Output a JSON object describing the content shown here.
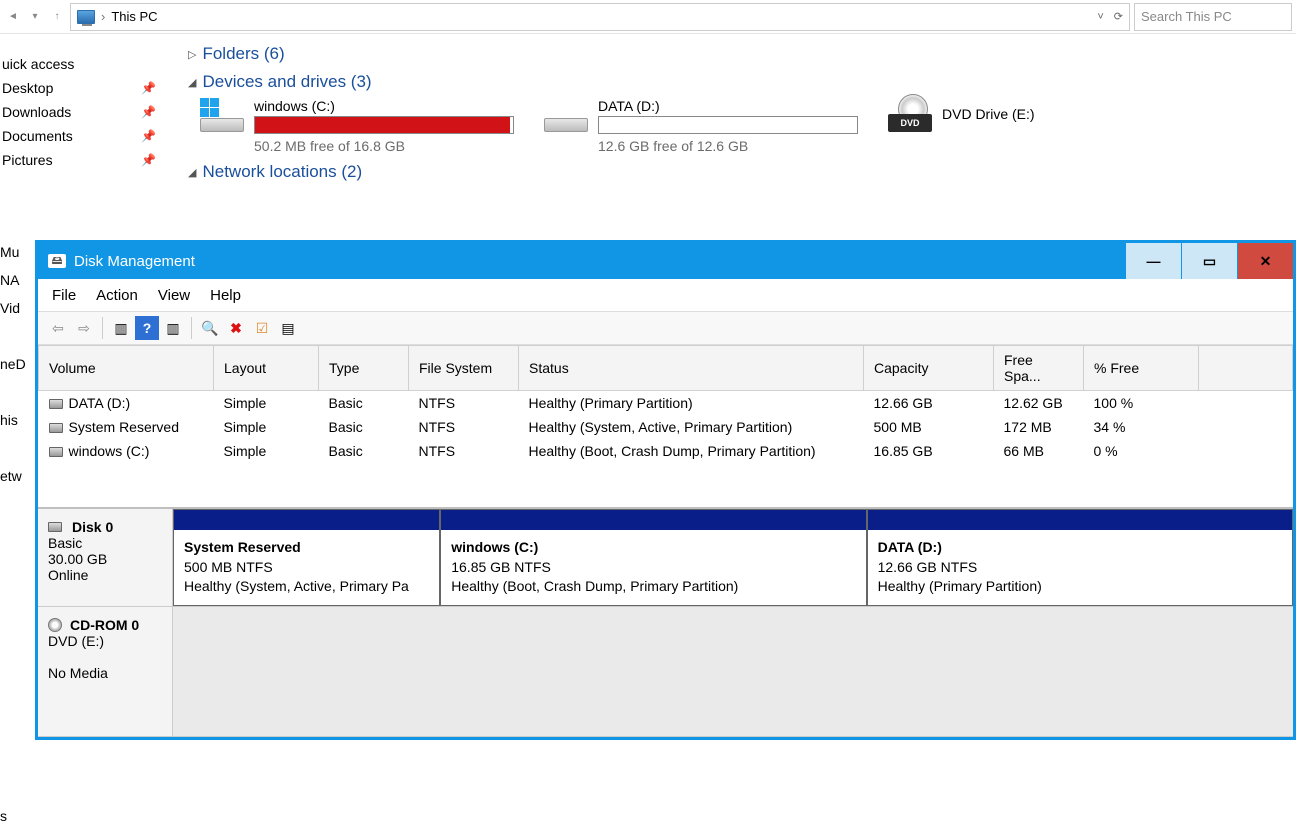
{
  "addressbar": {
    "path": "This PC",
    "refresh_glyph": "⟳",
    "chev_glyph": "˅"
  },
  "search": {
    "placeholder": "Search This PC"
  },
  "sidebar": {
    "quick": "uick access",
    "items": [
      {
        "label": "Desktop"
      },
      {
        "label": "Downloads"
      },
      {
        "label": "Documents"
      },
      {
        "label": "Pictures"
      }
    ]
  },
  "sections": {
    "folders": {
      "label": "Folders (6)"
    },
    "devices": {
      "label": "Devices and drives (3)"
    },
    "network": {
      "label": "Network locations (2)"
    }
  },
  "drives": {
    "c": {
      "title": "windows (C:)",
      "free": "50.2 MB free of 16.8 GB",
      "fill_pct": 99,
      "fill_color": "#d11217"
    },
    "d": {
      "title": "DATA (D:)",
      "free": "12.6 GB free of 12.6 GB",
      "fill_pct": 0,
      "fill_color": "#2d89ef"
    },
    "e": {
      "title": "DVD Drive (E:)"
    }
  },
  "left_cut": [
    "Mu",
    "NA",
    "Vid",
    "",
    "neD",
    "",
    "his",
    "",
    "etw",
    "",
    "",
    "",
    "",
    "",
    "",
    "",
    "",
    "",
    "",
    "",
    "s"
  ],
  "dm": {
    "title": "Disk Management",
    "menu": [
      "File",
      "Action",
      "View",
      "Help"
    ],
    "columns": [
      "Volume",
      "Layout",
      "Type",
      "File System",
      "Status",
      "Capacity",
      "Free Spa...",
      "% Free"
    ],
    "rows": [
      {
        "vol": "DATA (D:)",
        "layout": "Simple",
        "type": "Basic",
        "fs": "NTFS",
        "status": "Healthy (Primary Partition)",
        "cap": "12.66 GB",
        "free": "12.62 GB",
        "pct": "100 %"
      },
      {
        "vol": "System Reserved",
        "layout": "Simple",
        "type": "Basic",
        "fs": "NTFS",
        "status": "Healthy (System, Active, Primary Partition)",
        "cap": "500 MB",
        "free": "172 MB",
        "pct": "34 %"
      },
      {
        "vol": "windows (C:)",
        "layout": "Simple",
        "type": "Basic",
        "fs": "NTFS",
        "status": "Healthy (Boot, Crash Dump, Primary Partition)",
        "cap": "16.85 GB",
        "free": "66 MB",
        "pct": "0 %"
      }
    ],
    "disk0": {
      "name": "Disk 0",
      "type": "Basic",
      "size": "30.00 GB",
      "state": "Online",
      "parts": [
        {
          "name": "System Reserved",
          "line2": "500 MB NTFS",
          "line3": "Healthy (System, Active, Primary Pa",
          "flex": 25
        },
        {
          "name": "windows  (C:)",
          "line2": "16.85 GB NTFS",
          "line3": "Healthy (Boot, Crash Dump, Primary Partition)",
          "flex": 40
        },
        {
          "name": "DATA  (D:)",
          "line2": "12.66 GB NTFS",
          "line3": "Healthy (Primary Partition)",
          "flex": 40
        }
      ]
    },
    "cd": {
      "name": "CD-ROM 0",
      "line2": "DVD (E:)",
      "line3": "No Media"
    }
  }
}
